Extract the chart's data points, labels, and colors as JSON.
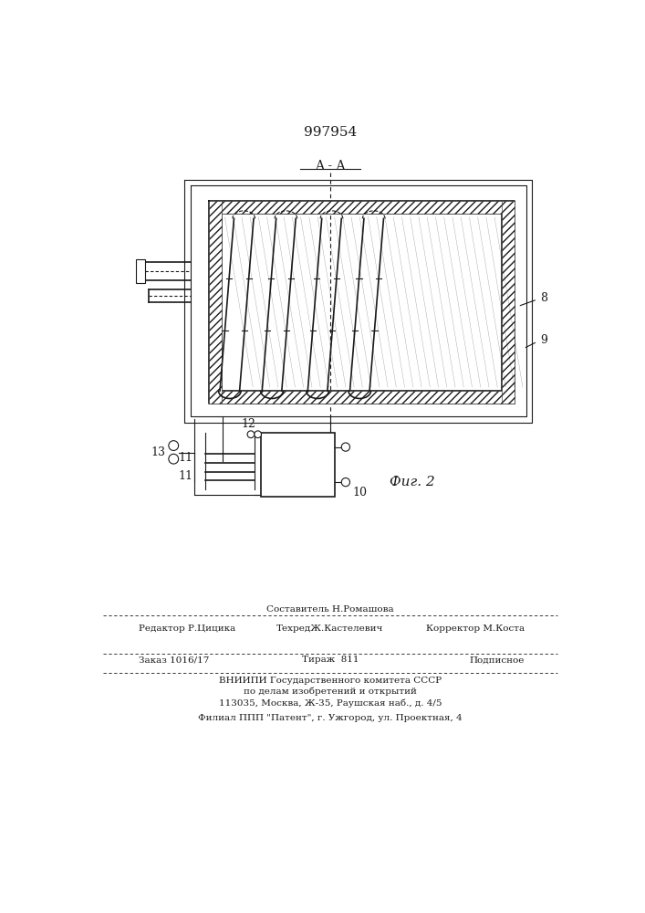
{
  "patent_number": "997954",
  "fig_label": "Фиг. 2",
  "section_label": "A - A",
  "footer": {
    "line1_left": "Редактор Р.Цицика",
    "line1_center": "Составитель Н.Ромашова",
    "line2_center": "ТехредЖ.Кастелевич",
    "line2_right": "Корректор М.Коста",
    "line3_left": "Заказ 1016/17",
    "line3_center": "Тираж  811",
    "line3_right": "Подписное",
    "line4": "ВНИИПИ Государственного комитета СССР",
    "line5": "по делам изобретений и открытий",
    "line6": "113035, Москва, Ж-35, Раушская наб., д. 4/5",
    "line7": "Филиал ППП \"Патент\", г. Ужгород, ул. Проектная, 4"
  },
  "bg_color": "#ffffff",
  "line_color": "#1a1a1a"
}
